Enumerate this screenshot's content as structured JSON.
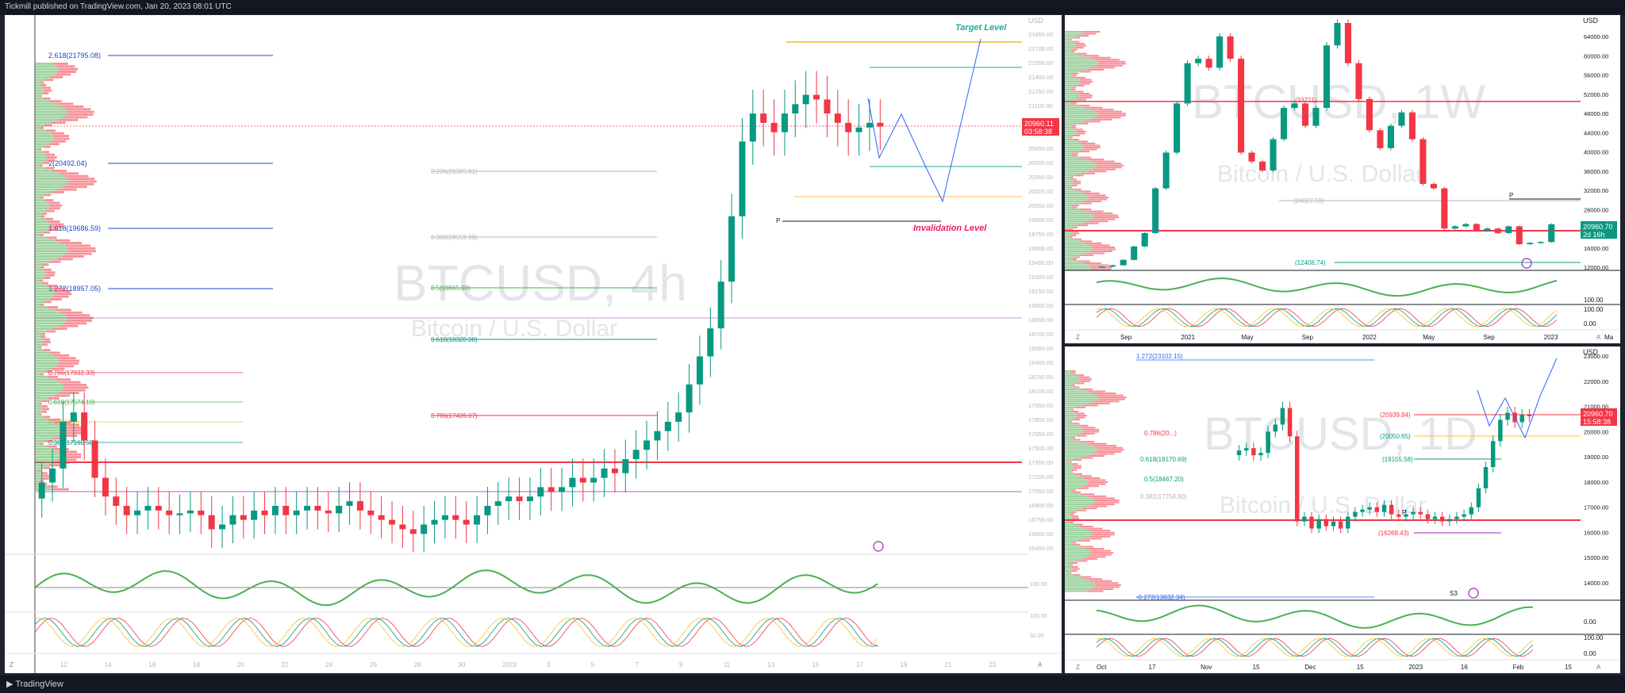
{
  "header": {
    "published_text": "Tickmill published on TradingView.com, Jan 20, 2023 08:01 UTC"
  },
  "footer": {
    "brand": "TradingView"
  },
  "panels": {
    "main": {
      "symbol_watermark": "BTCUSD, 4h",
      "name_watermark": "Bitcoin / U.S. Dollar",
      "currency": "USD",
      "last_price": "20960.11",
      "countdown": "03:58:38",
      "target_label": "Target Level",
      "invalidation_label": "Invalidation Level",
      "pivot_label": "P",
      "x_ticks": [
        "12",
        "14",
        "16",
        "18",
        "20",
        "22",
        "24",
        "26",
        "28",
        "30",
        "2023",
        "3",
        "5",
        "7",
        "9",
        "11",
        "13",
        "15",
        "17",
        "19",
        "21",
        "23"
      ],
      "y_ticks": [
        "21850.00",
        "21700.00",
        "21550.00",
        "21400.00",
        "21250.00",
        "21100.00",
        "20950.00",
        "20800.00",
        "20650.00",
        "20500.00",
        "20350.00",
        "20200.00",
        "20050.00",
        "19900.00",
        "19750.00",
        "19600.00",
        "19450.00",
        "19300.00",
        "19150.00",
        "19000.00",
        "18850.00",
        "18700.00",
        "18550.00",
        "18400.00",
        "18250.00",
        "18100.00",
        "17950.00",
        "17800.00",
        "17650.00",
        "17500.00",
        "17350.00",
        "17200.00",
        "17050.00",
        "16900.00",
        "16750.00",
        "16600.00",
        "16450.00"
      ],
      "fib_extension_levels": [
        "2.618(21795.08)",
        "2(20492.04)",
        "1.618(19686.59)",
        "1.272(18957.05)"
      ],
      "fib_retracement_levels": [
        "0.236(20385.61)",
        "0.382(19559.99)",
        "0.5(18965.03)",
        "0.618(18320.08)",
        "0.786(17426.07)"
      ],
      "left_fib_levels": [
        "0.786(17932.33)",
        "0.618(17574.10)",
        "0.5(17320)",
        "0.382(17160.50)"
      ],
      "rsi_ticks": [
        "100.00",
        "0.00"
      ],
      "stoch_ticks": [
        "100.00",
        "50.00"
      ],
      "z_button": "Z",
      "a_button": "A"
    },
    "weekly": {
      "symbol_watermark": "BTCUSD, 1W",
      "name_watermark": "Bitcoin / U.S. Dollar",
      "currency": "USD",
      "last_price": "20960.70",
      "countdown": "2d 16h",
      "pivot_label": "P",
      "levels": [
        "(24027.59)",
        "(12406.74)",
        "(33771)"
      ],
      "x_ticks": [
        "Sep",
        "2021",
        "May",
        "Sep",
        "2022",
        "May",
        "Sep",
        "2023",
        "Ma"
      ],
      "y_ticks": [
        "64000.00",
        "60000.00",
        "56000.00",
        "52000.00",
        "48000.00",
        "44000.00",
        "40000.00",
        "36000.00",
        "32000.00",
        "28000.00",
        "24000.00",
        "16000.00",
        "12000.00"
      ],
      "rsi_ticks": [
        "100.00"
      ],
      "stoch_ticks": [
        "100.00",
        "0.00"
      ],
      "z_button": "Z",
      "a_button": "A"
    },
    "daily": {
      "symbol_watermark": "BTCUSD, 1D",
      "name_watermark": "Bitcoin / U.S. Dollar",
      "currency": "USD",
      "last_price": "20960.70",
      "countdown": "15:58:38",
      "pivot_label": "P",
      "s3_label": "S3",
      "levels_right": [
        "(20939.84)",
        "(20050.65)",
        "(19155.58)",
        "(16268.43)"
      ],
      "levels_left": [
        "1.272(23102.15)",
        "0.786(20...)",
        "0.618(19170.69)",
        "0.5(18467.20)",
        "0.382(17758.80)",
        "-0.272(13832.34)"
      ],
      "x_ticks": [
        "Oct",
        "17",
        "Nov",
        "15",
        "Dec",
        "15",
        "2023",
        "16",
        "Feb",
        "15"
      ],
      "y_ticks": [
        "23000.00",
        "22000.00",
        "21000.00",
        "20000.00",
        "19000.00",
        "18000.00",
        "17000.00",
        "16000.00",
        "15000.00",
        "14000.00"
      ],
      "rsi_ticks": [
        "0.00"
      ],
      "stoch_ticks": [
        "100.00",
        "0.00"
      ],
      "z_button": "Z",
      "a_button": "A"
    }
  },
  "chart_data": [
    {
      "type": "candlestick",
      "title": "BTCUSD, 4h",
      "currency": "USD",
      "ylim": [
        16450,
        21950
      ],
      "series": [
        {
          "name": "BTCUSD",
          "close": [
            17150,
            17300,
            17800,
            17900,
            17600,
            17200,
            17000,
            16900,
            16800,
            16850,
            16900,
            16850,
            16800,
            16820,
            16850,
            16800,
            16650,
            16700,
            16800,
            16750,
            16850,
            16800,
            16900,
            16800,
            16850,
            16900,
            16850,
            16820,
            16900,
            16950,
            16850,
            16800,
            16750,
            16700,
            16650,
            16600,
            16700,
            16750,
            16800,
            16750,
            16700,
            16800,
            16900,
            16950,
            17000,
            16950,
            17000,
            17100,
            17050,
            17100,
            17200,
            17150,
            17200,
            17300,
            17250,
            17400,
            17500,
            17600,
            17700,
            17800,
            17900,
            18200,
            18500,
            18800,
            19300,
            20000,
            20800,
            21100,
            21000,
            20900,
            21100,
            21200,
            21300,
            21250,
            21100,
            21000,
            20900,
            20950,
            21000,
            20960
          ]
        }
      ]
    },
    {
      "type": "candlestick",
      "title": "BTCUSD, 1W",
      "currency": "USD",
      "ylim": [
        11000,
        66000
      ],
      "series": [
        {
          "name": "BTCUSD",
          "close": [
            11500,
            11800,
            13000,
            16000,
            19000,
            29000,
            37000,
            48000,
            57000,
            58000,
            56000,
            63000,
            58000,
            37000,
            35000,
            33000,
            40000,
            47000,
            48000,
            43000,
            47000,
            61000,
            66000,
            57000,
            49000,
            42000,
            38000,
            43000,
            46000,
            40000,
            30000,
            29000,
            20000,
            20500,
            21000,
            19500,
            20000,
            19000,
            20500,
            16500,
            16800,
            17000,
            20960
          ]
        }
      ]
    },
    {
      "type": "candlestick",
      "title": "BTCUSD, 1D",
      "currency": "USD",
      "ylim": [
        13500,
        23500
      ],
      "series": [
        {
          "name": "BTCUSD",
          "close": [
            19500,
            19600,
            19300,
            19400,
            20300,
            20600,
            21300,
            20100,
            16500,
            16700,
            16200,
            16600,
            16300,
            16500,
            16200,
            16700,
            16900,
            17000,
            17100,
            16900,
            17200,
            16800,
            16700,
            16800,
            16900,
            16800,
            16600,
            16700,
            16500,
            16600,
            16700,
            16800,
            17100,
            17900,
            18800,
            19900,
            20800,
            21100,
            20700,
            21000,
            20960
          ]
        }
      ]
    }
  ]
}
